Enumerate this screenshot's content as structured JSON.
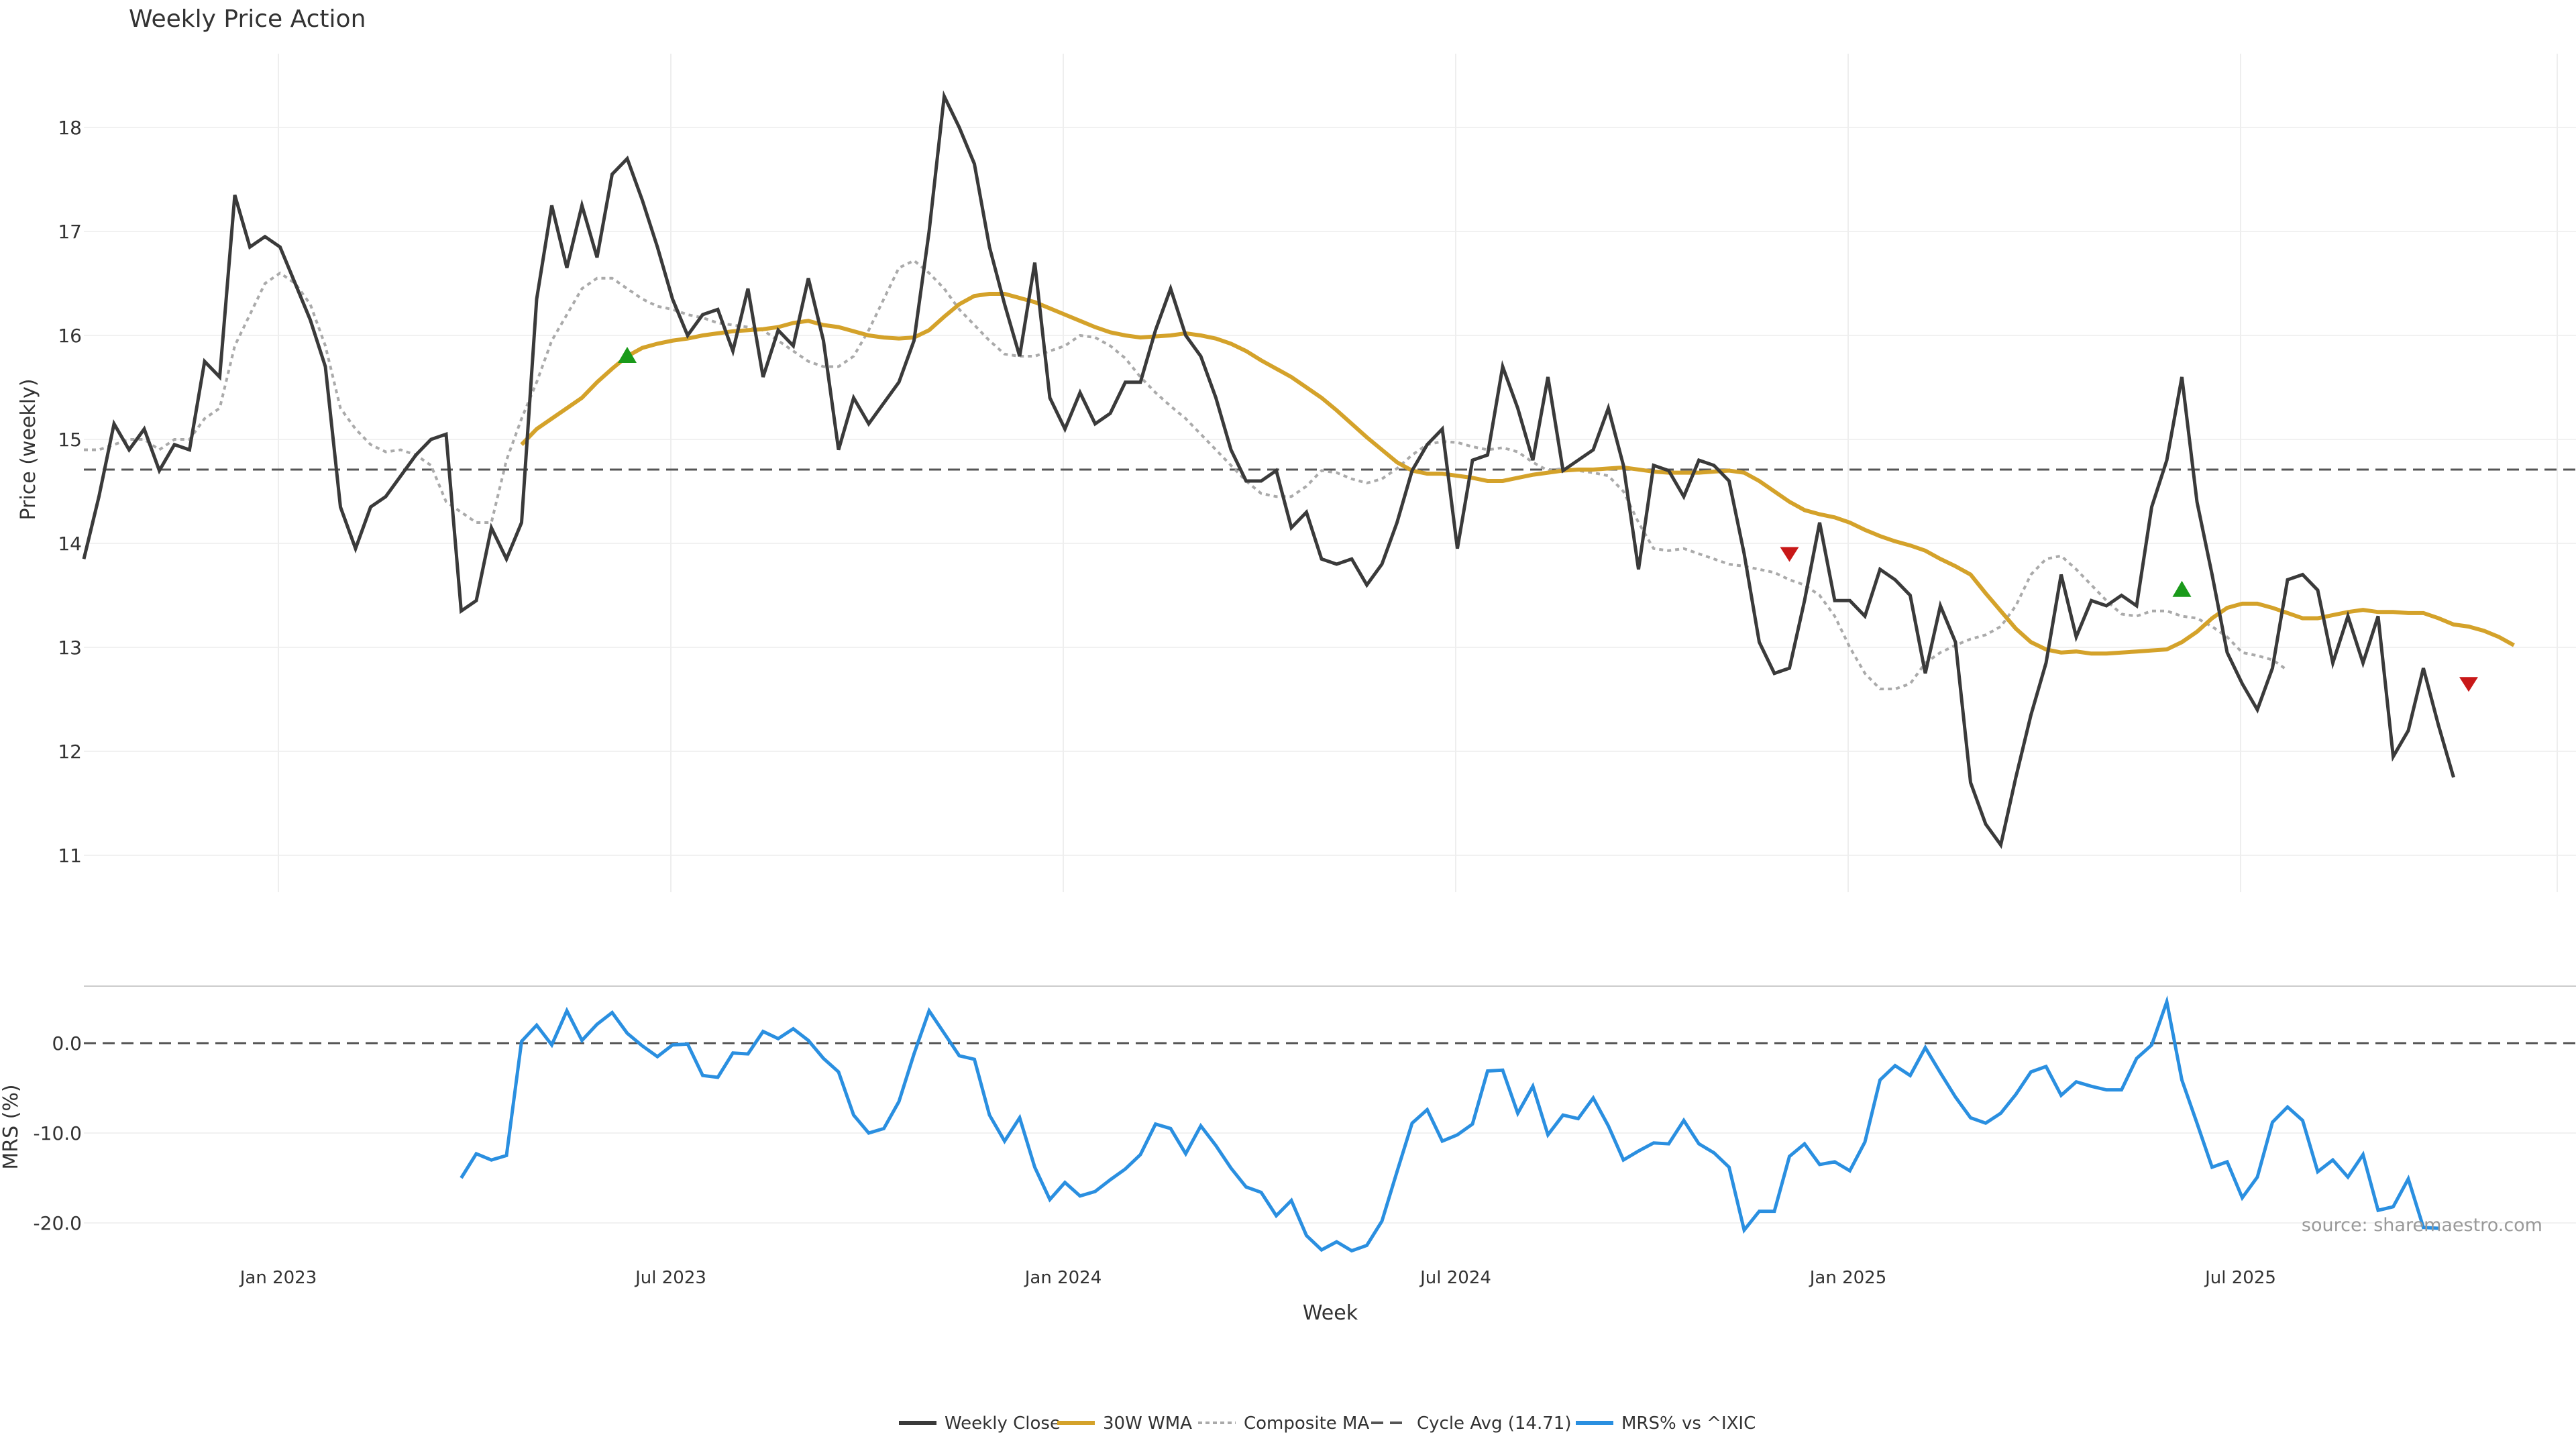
{
  "chart_data": {
    "type": "line",
    "title": "Weekly Price Action",
    "xlabel": "Week",
    "source_note": "source: sharemaestro.com",
    "x_ticks": [
      {
        "label": "Jan 2023",
        "week": 10
      },
      {
        "label": "Jul 2023",
        "week": 36
      },
      {
        "label": "Jan 2024",
        "week": 62
      },
      {
        "label": "Jul 2024",
        "week": 88
      },
      {
        "label": "Jan 2025",
        "week": 114
      },
      {
        "label": "Jul 2025",
        "week": 140
      }
    ],
    "price_panel": {
      "ylabel": "Price (weekly)",
      "ylim": [
        10.7,
        18.8
      ],
      "yticks": [
        "11",
        "12",
        "13",
        "14",
        "15",
        "16",
        "17",
        "18"
      ],
      "cycle_avg": 14.71,
      "weekly_close": [
        13.85,
        14.45,
        15.15,
        14.9,
        15.1,
        14.7,
        14.95,
        14.9,
        15.75,
        15.6,
        17.35,
        16.85,
        16.95,
        16.85,
        16.5,
        16.15,
        15.7,
        14.35,
        13.95,
        14.35,
        14.45,
        14.65,
        14.85,
        15.0,
        15.05,
        13.35,
        13.45,
        14.15,
        13.85,
        14.2,
        16.35,
        17.25,
        16.65,
        17.25,
        16.75,
        17.55,
        17.7,
        17.3,
        16.85,
        16.35,
        16.0,
        16.2,
        16.25,
        15.85,
        16.45,
        15.6,
        16.05,
        15.9,
        16.55,
        15.95,
        14.9,
        15.4,
        15.15,
        15.35,
        15.55,
        15.95,
        17.0,
        18.3,
        18.0,
        17.65,
        16.85,
        16.3,
        15.8,
        16.7,
        15.4,
        15.1,
        15.45,
        15.15,
        15.25,
        15.55,
        15.55,
        16.05,
        16.45,
        16.0,
        15.8,
        15.4,
        14.9,
        14.6,
        14.6,
        14.7,
        14.15,
        14.3,
        13.85,
        13.8,
        13.85,
        13.6,
        13.8,
        14.2,
        14.7,
        14.95,
        15.1,
        13.95,
        14.8,
        14.85,
        15.7,
        15.3,
        14.8,
        15.6,
        14.7,
        14.8,
        14.9,
        15.3,
        14.75,
        13.75,
        14.75,
        14.7,
        14.45,
        14.8,
        14.75,
        14.6,
        13.9,
        13.05,
        12.75,
        12.8,
        13.45,
        14.2,
        13.45,
        13.45,
        13.3,
        13.75,
        13.65,
        13.5,
        12.75,
        13.4,
        13.05,
        11.7,
        11.3,
        11.1,
        11.75,
        12.35,
        12.85,
        13.7,
        13.1,
        13.45,
        13.4,
        13.5,
        13.4,
        14.35,
        14.8,
        15.6,
        14.4,
        13.7,
        12.95,
        12.65,
        12.4,
        12.8,
        13.65,
        13.7,
        13.55,
        12.85,
        13.3,
        12.85,
        13.3,
        11.95,
        12.2,
        12.8,
        12.25,
        11.75
      ],
      "wma30_start_week": 29,
      "wma30": [
        14.95,
        15.1,
        15.2,
        15.3,
        15.4,
        15.55,
        15.68,
        15.8,
        15.88,
        15.92,
        15.95,
        15.97,
        16.0,
        16.02,
        16.04,
        16.05,
        16.06,
        16.08,
        16.12,
        16.14,
        16.1,
        16.08,
        16.04,
        16.0,
        15.98,
        15.97,
        15.98,
        16.05,
        16.18,
        16.3,
        16.38,
        16.4,
        16.4,
        16.36,
        16.32,
        16.26,
        16.2,
        16.14,
        16.08,
        16.03,
        16.0,
        15.98,
        15.99,
        16.0,
        16.02,
        16.0,
        15.97,
        15.92,
        15.85,
        15.76,
        15.68,
        15.6,
        15.5,
        15.4,
        15.28,
        15.15,
        15.02,
        14.9,
        14.78,
        14.7,
        14.67,
        14.67,
        14.65,
        14.63,
        14.6,
        14.6,
        14.63,
        14.66,
        14.68,
        14.7,
        14.71,
        14.71,
        14.72,
        14.73,
        14.71,
        14.69,
        14.68,
        14.68,
        14.68,
        14.69,
        14.7,
        14.68,
        14.6,
        14.5,
        14.4,
        14.32,
        14.28,
        14.25,
        14.2,
        14.13,
        14.07,
        14.02,
        13.98,
        13.93,
        13.85,
        13.78,
        13.7,
        13.52,
        13.35,
        13.18,
        13.05,
        12.98,
        12.95,
        12.96,
        12.94,
        12.94,
        12.95,
        12.96,
        12.97,
        12.98,
        13.05,
        13.15,
        13.28,
        13.38,
        13.42,
        13.42,
        13.38,
        13.33,
        13.28,
        13.28,
        13.31,
        13.34,
        13.36,
        13.34,
        13.34,
        13.33,
        13.33,
        13.28,
        13.22,
        13.2,
        13.16,
        13.1,
        13.02
      ],
      "composite_ma": [
        14.9,
        14.9,
        14.95,
        15.0,
        15.0,
        14.9,
        15.0,
        15.0,
        15.2,
        15.3,
        15.9,
        16.2,
        16.5,
        16.6,
        16.5,
        16.3,
        15.9,
        15.3,
        15.1,
        14.95,
        14.88,
        14.9,
        14.85,
        14.75,
        14.4,
        14.3,
        14.2,
        14.2,
        14.8,
        15.2,
        15.55,
        15.95,
        16.2,
        16.45,
        16.55,
        16.55,
        16.45,
        16.35,
        16.28,
        16.25,
        16.2,
        16.17,
        16.12,
        16.1,
        16.08,
        16.05,
        15.95,
        15.85,
        15.75,
        15.7,
        15.7,
        15.8,
        16.05,
        16.35,
        16.65,
        16.72,
        16.6,
        16.45,
        16.25,
        16.1,
        15.95,
        15.82,
        15.8,
        15.8,
        15.85,
        15.9,
        16.0,
        15.98,
        15.9,
        15.78,
        15.6,
        15.45,
        15.32,
        15.2,
        15.05,
        14.9,
        14.75,
        14.6,
        14.48,
        14.45,
        14.45,
        14.55,
        14.7,
        14.68,
        14.62,
        14.58,
        14.62,
        14.72,
        14.85,
        14.95,
        14.98,
        14.97,
        14.93,
        14.9,
        14.92,
        14.88,
        14.78,
        14.7,
        14.72,
        14.7,
        14.68,
        14.65,
        14.5,
        14.2,
        13.95,
        13.93,
        13.95,
        13.9,
        13.85,
        13.8,
        13.78,
        13.75,
        13.72,
        13.65,
        13.6,
        13.5,
        13.3,
        13.0,
        12.75,
        12.6,
        12.6,
        12.65,
        12.85,
        12.95,
        13.02,
        13.08,
        13.12,
        13.2,
        13.4,
        13.7,
        13.85,
        13.88,
        13.75,
        13.6,
        13.45,
        13.32,
        13.3,
        13.35,
        13.35,
        13.3,
        13.28,
        13.2,
        13.1,
        12.95,
        12.92,
        12.88,
        12.78
      ],
      "composite_start_week": 0,
      "signals": [
        {
          "type": "buy",
          "week": 36,
          "price": 15.8
        },
        {
          "type": "sell",
          "week": 113,
          "price": 13.9
        },
        {
          "type": "buy",
          "week": 139,
          "price": 13.55
        },
        {
          "type": "sell",
          "week": 158,
          "price": 12.65
        }
      ]
    },
    "mrs_panel": {
      "ylabel": "MRS (%)",
      "ylim": [
        -23.5,
        7
      ],
      "yticks": [
        "0.0",
        "-10.0",
        "-20.0"
      ],
      "start_week": 25,
      "values": [
        -15,
        -12.3,
        -13,
        -12.5,
        0.2,
        2,
        -0.2,
        3.6,
        0.3,
        2.1,
        3.4,
        1.1,
        -0.3,
        -1.5,
        -0.2,
        -0.1,
        -3.6,
        -3.8,
        -1.1,
        -1.2,
        1.3,
        0.5,
        1.6,
        0.3,
        -1.7,
        -3.2,
        -8,
        -10,
        -9.5,
        -6.5,
        -1.2,
        3.6,
        1.1,
        -1.4,
        -1.8,
        -8,
        -10.9,
        -8.3,
        -13.8,
        -17.4,
        -15.5,
        -17,
        -16.5,
        -15.2,
        -14,
        -12.4,
        -9,
        -9.5,
        -12.3,
        -9.2,
        -11.4,
        -13.9,
        -16,
        -16.6,
        -19.2,
        -17.5,
        -21.4,
        -23,
        -22.1,
        -23.1,
        -22.5,
        -19.8,
        -14.3,
        -8.9,
        -7.4,
        -10.9,
        -10.2,
        -9,
        -3.1,
        -3,
        -7.8,
        -4.8,
        -10.2,
        -8,
        -8.4,
        -6.1,
        -9.2,
        -13,
        -12,
        -11.1,
        -11.2,
        -8.6,
        -11.2,
        -12.2,
        -13.8,
        -20.8,
        -18.7,
        -18.7,
        -12.6,
        -11.2,
        -13.5,
        -13.2,
        -14.2,
        -11,
        -4.1,
        -2.5,
        -3.6,
        -0.5,
        -3.3,
        -6,
        -8.3,
        -8.9,
        -7.8,
        -5.7,
        -3.2,
        -2.6,
        -5.8,
        -4.3,
        -4.8,
        -5.2,
        -5.2,
        -1.7,
        -0.2,
        4.6,
        -4.1,
        -8.9,
        -13.8,
        -13.2,
        -17.2,
        -14.9,
        -8.8,
        -7.1,
        -8.6,
        -14.3,
        -13,
        -14.9,
        -12.4,
        -18.6,
        -18.2,
        -15.1,
        -20.5,
        -20.6
      ]
    },
    "legend": [
      {
        "label": "Weekly Close",
        "color": "#3a3a3a",
        "style": "solid"
      },
      {
        "label": "30W WMA",
        "color": "#d4a22a",
        "style": "solid"
      },
      {
        "label": "Composite MA",
        "color": "#aaaaaa",
        "style": "dotted"
      },
      {
        "label": "Cycle Avg (14.71)",
        "color": "#555555",
        "style": "dashed"
      },
      {
        "label": "MRS% vs ^IXIC",
        "color": "#2a8fe0",
        "style": "solid"
      }
    ],
    "colors": {
      "close": "#3a3a3a",
      "wma": "#d4a22a",
      "composite": "#aaaaaa",
      "cycle": "#555555",
      "mrs": "#2a8fe0",
      "buy": "#1a9a1a",
      "sell": "#c81818"
    }
  }
}
